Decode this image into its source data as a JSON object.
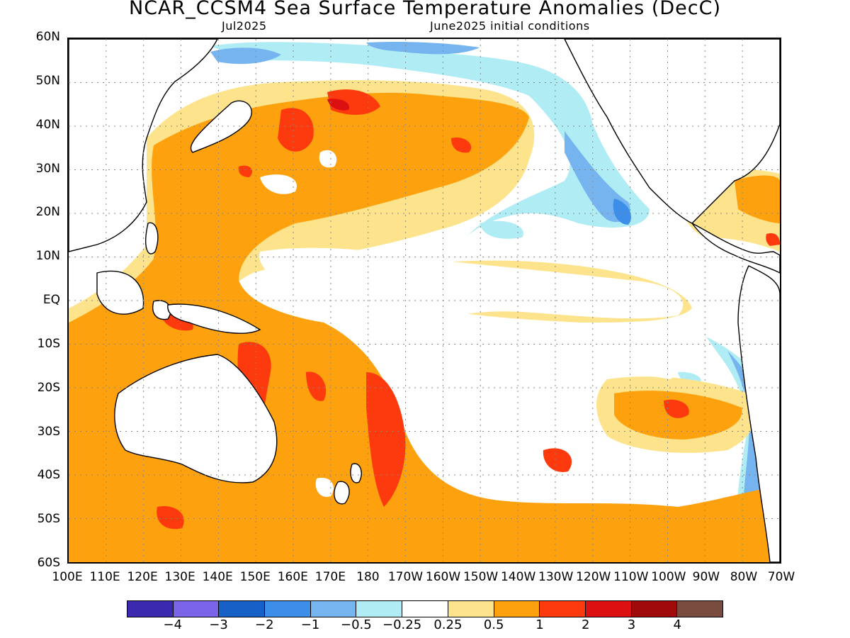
{
  "header": {
    "title": "NCAR_CCSM4 Sea Surface Temperature Anomalies (DecC)",
    "valid_month": "Jul2025",
    "init_conditions": "June2025 initial conditions"
  },
  "axes": {
    "lat_labels": [
      "60N",
      "50N",
      "40N",
      "30N",
      "20N",
      "10N",
      "EQ",
      "10S",
      "20S",
      "30S",
      "40S",
      "50S",
      "60S"
    ],
    "lon_labels": [
      "100E",
      "110E",
      "120E",
      "130E",
      "140E",
      "150E",
      "160E",
      "170E",
      "180",
      "170W",
      "160W",
      "150W",
      "140W",
      "130W",
      "120W",
      "110W",
      "100W",
      "90W",
      "80W",
      "70W"
    ],
    "lat_range": [
      -60,
      60
    ],
    "lon_range_east_deg": [
      100,
      290
    ],
    "grid": "dotted"
  },
  "colorbar": {
    "colors": [
      "#3b2ab0",
      "#7b64e8",
      "#1660c8",
      "#3d8ee8",
      "#76b4f0",
      "#b0ecf4",
      "#ffffff",
      "#fde38c",
      "#fda20e",
      "#fd3a0e",
      "#dc1010",
      "#a00a0a",
      "#7a4c40"
    ],
    "labels": [
      "−4",
      "−3",
      "−2",
      "−1",
      "−0.5",
      "−0.25",
      "0.25",
      "0.5",
      "1",
      "2",
      "3",
      "4"
    ]
  },
  "colors": {
    "weak_warm": "#fde38c",
    "warm": "#fda20e",
    "strong_warm": "#fd3a0e",
    "very_strong_warm": "#dc1010",
    "extreme": "#7a4c40",
    "weak_cool": "#b0ecf4",
    "cool": "#76b4f0",
    "strong_cool": "#3d8ee8"
  }
}
